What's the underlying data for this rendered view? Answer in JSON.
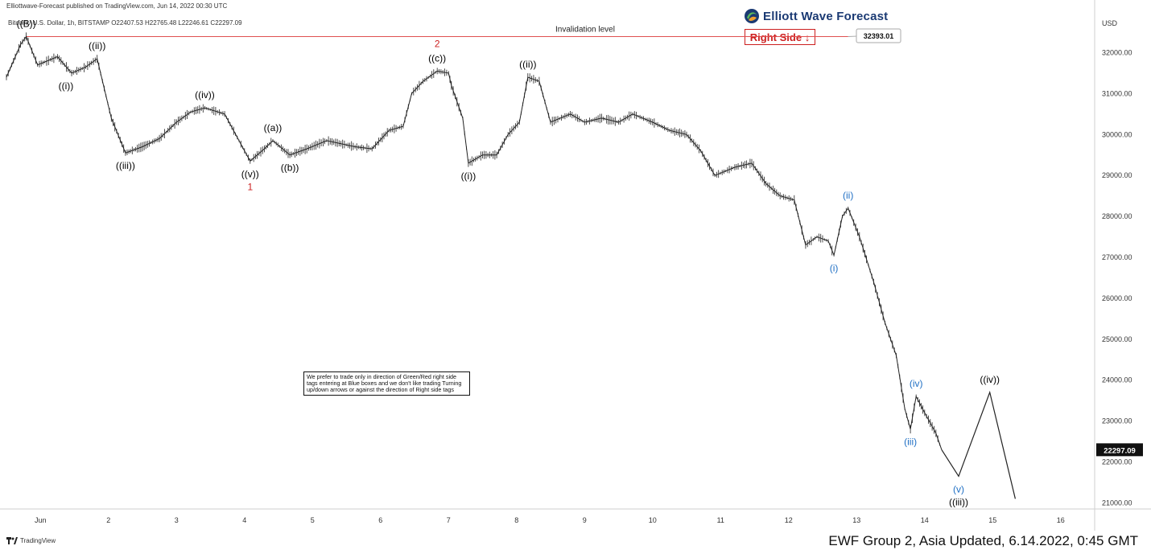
{
  "header": {
    "publisher_line": "Elliottwave-Forecast published on TradingView.com, Jun 14, 2022 00:30 UTC",
    "instrument_line": "Bitcoin / U.S. Dollar, 1h, BITSTAMP  O22407.53  H22765.48  L22246.61  C22297.09"
  },
  "brand": {
    "name": "Elliott Wave Forecast",
    "logo_icon": "ewf-globe-icon"
  },
  "right_side_tag": {
    "label": "Right Side",
    "arrow": "↓",
    "color": "#cc1f1f"
  },
  "note": "We prefer to trade only in direction of Green/Red right side tags entering at Blue boxes and we don't like trading Turning up/down arrows or against the direction of Right side tags",
  "footer": "EWF Group 2, Asia Updated, 6.14.2022, 0:45 GMT",
  "tradingview_label": "TradingView",
  "chart_data": {
    "type": "line",
    "y_unit": "USD",
    "ylim": [
      20850,
      33050
    ],
    "xlim": [
      "2022-05-31 12:00",
      "2022-06-16 12:00"
    ],
    "y_ticks": [
      21000,
      22000,
      23000,
      24000,
      25000,
      26000,
      27000,
      28000,
      29000,
      30000,
      31000,
      32000
    ],
    "x_tick_labels": [
      {
        "t": "2022-06-01 00:00",
        "label": "Jun"
      },
      {
        "t": "2022-06-02 00:00",
        "label": "2"
      },
      {
        "t": "2022-06-03 00:00",
        "label": "3"
      },
      {
        "t": "2022-06-04 00:00",
        "label": "4"
      },
      {
        "t": "2022-06-05 00:00",
        "label": "5"
      },
      {
        "t": "2022-06-06 00:00",
        "label": "6"
      },
      {
        "t": "2022-06-07 00:00",
        "label": "7"
      },
      {
        "t": "2022-06-08 00:00",
        "label": "8"
      },
      {
        "t": "2022-06-09 00:00",
        "label": "9"
      },
      {
        "t": "2022-06-10 00:00",
        "label": "10"
      },
      {
        "t": "2022-06-11 00:00",
        "label": "11"
      },
      {
        "t": "2022-06-12 00:00",
        "label": "12"
      },
      {
        "t": "2022-06-13 00:00",
        "label": "13"
      },
      {
        "t": "2022-06-14 00:00",
        "label": "14"
      },
      {
        "t": "2022-06-15 00:00",
        "label": "15"
      },
      {
        "t": "2022-06-16 00:00",
        "label": "16"
      }
    ],
    "price_path": [
      [
        "2022-05-31 12:00",
        31400
      ],
      [
        "2022-05-31 17:00",
        32200
      ],
      [
        "2022-05-31 19:00",
        32393
      ],
      [
        "2022-05-31 23:00",
        31700
      ],
      [
        "2022-06-01 06:00",
        31900
      ],
      [
        "2022-06-01 11:00",
        31500
      ],
      [
        "2022-06-01 16:00",
        31650
      ],
      [
        "2022-06-01 20:00",
        31850
      ],
      [
        "2022-06-02 01:00",
        30400
      ],
      [
        "2022-06-02 06:00",
        29550
      ],
      [
        "2022-06-02 12:00",
        29700
      ],
      [
        "2022-06-02 18:00",
        29900
      ],
      [
        "2022-06-03 00:00",
        30300
      ],
      [
        "2022-06-03 05:00",
        30550
      ],
      [
        "2022-06-03 10:00",
        30650
      ],
      [
        "2022-06-03 17:00",
        30500
      ],
      [
        "2022-06-04 00:00",
        29600
      ],
      [
        "2022-06-04 02:00",
        29350
      ],
      [
        "2022-06-04 07:00",
        29650
      ],
      [
        "2022-06-04 10:00",
        29850
      ],
      [
        "2022-06-04 16:00",
        29500
      ],
      [
        "2022-06-04 22:00",
        29650
      ],
      [
        "2022-06-05 05:00",
        29850
      ],
      [
        "2022-06-05 15:00",
        29700
      ],
      [
        "2022-06-05 21:00",
        29650
      ],
      [
        "2022-06-06 03:00",
        30100
      ],
      [
        "2022-06-06 08:00",
        30200
      ],
      [
        "2022-06-06 11:00",
        31000
      ],
      [
        "2022-06-06 15:00",
        31300
      ],
      [
        "2022-06-06 20:00",
        31550
      ],
      [
        "2022-06-07 00:00",
        31500
      ],
      [
        "2022-06-07 01:00",
        31200
      ],
      [
        "2022-06-07 05:00",
        30400
      ],
      [
        "2022-06-07 07:00",
        29300
      ],
      [
        "2022-06-07 12:00",
        29500
      ],
      [
        "2022-06-07 17:00",
        29500
      ],
      [
        "2022-06-07 21:00",
        30000
      ],
      [
        "2022-06-08 01:00",
        30300
      ],
      [
        "2022-06-08 04:00",
        31400
      ],
      [
        "2022-06-08 08:00",
        31300
      ],
      [
        "2022-06-08 12:00",
        30300
      ],
      [
        "2022-06-08 19:00",
        30500
      ],
      [
        "2022-06-09 00:00",
        30300
      ],
      [
        "2022-06-09 06:00",
        30400
      ],
      [
        "2022-06-09 12:00",
        30300
      ],
      [
        "2022-06-09 17:00",
        30500
      ],
      [
        "2022-06-10 00:00",
        30300
      ],
      [
        "2022-06-10 06:00",
        30100
      ],
      [
        "2022-06-10 12:00",
        30000
      ],
      [
        "2022-06-10 17:00",
        29600
      ],
      [
        "2022-06-10 22:00",
        29000
      ],
      [
        "2022-06-11 05:00",
        29200
      ],
      [
        "2022-06-11 11:00",
        29300
      ],
      [
        "2022-06-11 16:00",
        28800
      ],
      [
        "2022-06-11 21:00",
        28500
      ],
      [
        "2022-06-12 02:00",
        28400
      ],
      [
        "2022-06-12 06:00",
        27300
      ],
      [
        "2022-06-12 10:00",
        27500
      ],
      [
        "2022-06-12 14:00",
        27400
      ],
      [
        "2022-06-12 16:00",
        27050
      ],
      [
        "2022-06-12 19:00",
        28000
      ],
      [
        "2022-06-12 21:00",
        28200
      ],
      [
        "2022-06-13 01:00",
        27500
      ],
      [
        "2022-06-13 06:00",
        26400
      ],
      [
        "2022-06-13 10:00",
        25400
      ],
      [
        "2022-06-13 14:00",
        24600
      ],
      [
        "2022-06-13 17:00",
        23300
      ],
      [
        "2022-06-13 19:00",
        22800
      ],
      [
        "2022-06-13 21:00",
        23600
      ],
      [
        "2022-06-14 00:00",
        23200
      ],
      [
        "2022-06-14 04:00",
        22700
      ],
      [
        "2022-06-14 06:00",
        22297
      ]
    ],
    "projection_path": [
      [
        "2022-06-14 06:00",
        22297
      ],
      [
        "2022-06-14 12:00",
        21650
      ],
      [
        "2022-06-14 23:00",
        23700
      ],
      [
        "2022-06-15 08:00",
        21100
      ]
    ],
    "invalidation": {
      "value": 32393.01,
      "label": "Invalidation level",
      "price_label": "32393.01",
      "t_start": "2022-05-31 19:00",
      "t_end": "2022-06-12 21:00"
    },
    "last_price": {
      "value": 22297.09,
      "label": "22297.09"
    },
    "wave_labels": [
      {
        "text": "((B))",
        "t": "2022-05-31 19:00",
        "y": 32393,
        "pos": "above",
        "color": "#000000"
      },
      {
        "text": "((i))",
        "t": "2022-06-01 09:00",
        "y": 31500,
        "pos": "below",
        "color": "#000000"
      },
      {
        "text": "((ii))",
        "t": "2022-06-01 20:00",
        "y": 31850,
        "pos": "above",
        "color": "#000000"
      },
      {
        "text": "((iii))",
        "t": "2022-06-02 06:00",
        "y": 29550,
        "pos": "below",
        "color": "#000000"
      },
      {
        "text": "((iv))",
        "t": "2022-06-03 10:00",
        "y": 30650,
        "pos": "above",
        "color": "#000000"
      },
      {
        "text": "((v))",
        "t": "2022-06-04 02:00",
        "y": 29350,
        "pos": "below",
        "color": "#000000"
      },
      {
        "text": "1",
        "t": "2022-06-04 02:00",
        "y": 29350,
        "pos": "below2",
        "color": "#cc1f1f"
      },
      {
        "text": "((a))",
        "t": "2022-06-04 10:00",
        "y": 29850,
        "pos": "above",
        "color": "#000000"
      },
      {
        "text": "((b))",
        "t": "2022-06-04 16:00",
        "y": 29500,
        "pos": "below",
        "color": "#000000"
      },
      {
        "text": "((c))",
        "t": "2022-06-06 20:00",
        "y": 31550,
        "pos": "above",
        "color": "#000000"
      },
      {
        "text": "2",
        "t": "2022-06-06 20:00",
        "y": 31550,
        "pos": "above2",
        "color": "#cc1f1f"
      },
      {
        "text": "((i))",
        "t": "2022-06-07 07:00",
        "y": 29300,
        "pos": "below",
        "color": "#000000"
      },
      {
        "text": "((ii))",
        "t": "2022-06-08 04:00",
        "y": 31400,
        "pos": "above",
        "color": "#000000"
      },
      {
        "text": "(i)",
        "t": "2022-06-12 16:00",
        "y": 27050,
        "pos": "below",
        "color": "#1f6fc4"
      },
      {
        "text": "(ii)",
        "t": "2022-06-12 21:00",
        "y": 28200,
        "pos": "above",
        "color": "#1f6fc4"
      },
      {
        "text": "(iii)",
        "t": "2022-06-13 19:00",
        "y": 22800,
        "pos": "below",
        "color": "#1f6fc4"
      },
      {
        "text": "(iv)",
        "t": "2022-06-13 21:00",
        "y": 23600,
        "pos": "above",
        "color": "#1f6fc4"
      },
      {
        "text": "(v)",
        "t": "2022-06-14 12:00",
        "y": 21650,
        "pos": "below",
        "color": "#1f6fc4"
      },
      {
        "text": "((iii))",
        "t": "2022-06-14 12:00",
        "y": 21650,
        "pos": "below2",
        "color": "#000000"
      },
      {
        "text": "((iv))",
        "t": "2022-06-14 23:00",
        "y": 23700,
        "pos": "above",
        "color": "#000000"
      }
    ],
    "grid": false,
    "legend": "none"
  }
}
